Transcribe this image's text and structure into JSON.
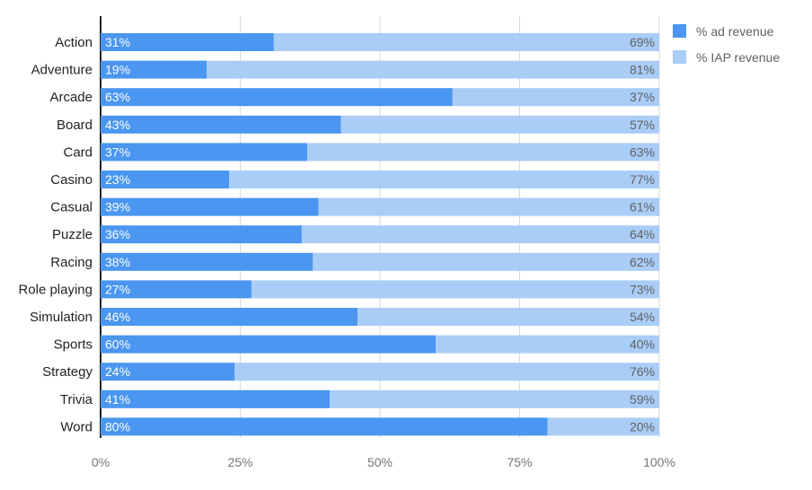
{
  "chart_data": {
    "type": "bar",
    "orientation": "horizontal",
    "stacked": "percent",
    "categories": [
      "Action",
      "Adventure",
      "Arcade",
      "Board",
      "Card",
      "Casino",
      "Casual",
      "Puzzle",
      "Racing",
      "Role playing",
      "Simulation",
      "Sports",
      "Strategy",
      "Trivia",
      "Word"
    ],
    "series": [
      {
        "name": "% ad revenue",
        "color": "#4a96f0",
        "values": [
          31,
          19,
          63,
          43,
          37,
          23,
          39,
          36,
          38,
          27,
          46,
          60,
          24,
          41,
          80
        ],
        "labels": [
          "31%",
          "19%",
          "63%",
          "43%",
          "37%",
          "23%",
          "39%",
          "36%",
          "38%",
          "27%",
          "46%",
          "60%",
          "24%",
          "41%",
          "80%"
        ]
      },
      {
        "name": "% IAP revenue",
        "color": "#a9cdf7",
        "values": [
          69,
          81,
          37,
          57,
          63,
          77,
          61,
          64,
          62,
          73,
          54,
          40,
          76,
          59,
          20
        ],
        "labels": [
          "69%",
          "81%",
          "37%",
          "57%",
          "63%",
          "77%",
          "61%",
          "64%",
          "62%",
          "73%",
          "54%",
          "40%",
          "76%",
          "59%",
          "20%"
        ]
      }
    ],
    "xlim": [
      0,
      100
    ],
    "xticks": [
      0,
      25,
      50,
      75,
      100
    ],
    "xtick_labels": [
      "0%",
      "25%",
      "50%",
      "75%",
      "100%"
    ],
    "grid": true,
    "legend_position": "top-right",
    "title": "",
    "xlabel": "",
    "ylabel": ""
  },
  "colors": {
    "grid": "#d9d9d9",
    "axis": "#222222"
  }
}
